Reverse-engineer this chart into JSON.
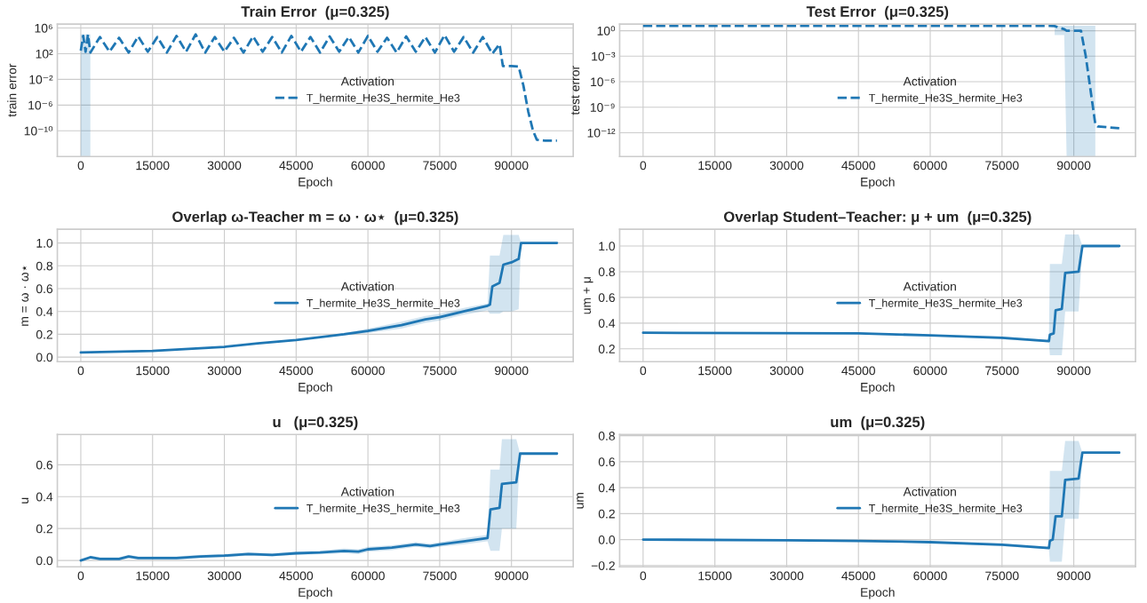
{
  "chart_data": [
    {
      "type": "line",
      "title": "Train Error  (μ=0.325)",
      "xlabel": "Epoch",
      "ylabel": "train error",
      "legend_title": "Activation",
      "log": "y",
      "grid": true,
      "legend": "right",
      "line_style": "dashed",
      "xlim": [
        -4900,
        102900
      ],
      "xticks": [
        0,
        15000,
        30000,
        45000,
        60000,
        75000,
        90000
      ],
      "ylim": [
        1e-14,
        4000000
      ],
      "yticks": [
        {
          "value": 1000000,
          "label": "10⁶"
        },
        {
          "value": 100,
          "label": "10²"
        },
        {
          "value": 0.01,
          "label": "10⁻²"
        },
        {
          "value": 1e-06,
          "label": "10⁻⁶"
        },
        {
          "value": 1e-10,
          "label": "10⁻¹⁰"
        }
      ],
      "series": [
        {
          "name": "T_hermite_He3S_hermite_He3",
          "color": "#1f77b4",
          "x": [
            0,
            500,
            1000,
            1500,
            2000,
            4000,
            6000,
            8000,
            10000,
            12000,
            14000,
            16000,
            18000,
            20000,
            22000,
            24000,
            26000,
            28000,
            30000,
            32000,
            34000,
            36000,
            38000,
            40000,
            42000,
            44000,
            46000,
            48000,
            50000,
            52000,
            54000,
            56000,
            58000,
            60000,
            62000,
            64000,
            66000,
            68000,
            70000,
            72000,
            74000,
            76000,
            78000,
            80000,
            82000,
            84000,
            86000,
            87500,
            88200,
            90000,
            91500,
            92500,
            93500,
            94500,
            95300,
            97000,
            99500
          ],
          "values": [
            300,
            60000,
            200,
            100000,
            150,
            40000,
            200,
            30000,
            150,
            50000,
            200,
            40000,
            150,
            60000,
            200,
            100000,
            150,
            40000,
            200,
            30000,
            150,
            50000,
            200,
            40000,
            150,
            60000,
            200,
            40000,
            150,
            50000,
            200,
            40000,
            150,
            60000,
            200,
            30000,
            150,
            50000,
            200,
            40000,
            150,
            80000,
            200,
            40000,
            150,
            40000,
            100,
            3000,
            1.2,
            1.2,
            1,
            0.001,
            1e-07,
            1e-10,
            4e-12,
            3e-12,
            3e-12
          ],
          "lower": [
            1e-14,
            1e-14,
            1e-14,
            1e-14,
            1e-14,
            null,
            null,
            null,
            null,
            null,
            null,
            null,
            null,
            null,
            null,
            null,
            null,
            null,
            null,
            null,
            null,
            null,
            null,
            null,
            null,
            null,
            null,
            null,
            null,
            null,
            null,
            null,
            null,
            null,
            null,
            null,
            null,
            null,
            null,
            null,
            null,
            null,
            null,
            null,
            null,
            null,
            null,
            null,
            null,
            null,
            null,
            null,
            null,
            null,
            null,
            null,
            null
          ],
          "upper": [
            100000,
            100000,
            100000,
            100000,
            100000,
            null,
            null,
            null,
            null,
            null,
            null,
            null,
            null,
            null,
            null,
            null,
            null,
            null,
            null,
            null,
            null,
            null,
            null,
            null,
            null,
            null,
            null,
            null,
            null,
            null,
            null,
            null,
            null,
            null,
            null,
            null,
            null,
            null,
            null,
            null,
            null,
            null,
            null,
            null,
            null,
            null,
            null,
            null,
            null,
            null,
            null,
            null,
            null,
            null,
            null,
            null,
            null
          ]
        }
      ]
    },
    {
      "type": "line",
      "title": "Test Error  (μ=0.325)",
      "xlabel": "Epoch",
      "ylabel": "test error",
      "legend_title": "Activation",
      "log": "y",
      "grid": true,
      "legend": "right",
      "line_style": "dashed",
      "xlim": [
        -4900,
        102900
      ],
      "xticks": [
        0,
        15000,
        30000,
        45000,
        60000,
        75000,
        90000
      ],
      "ylim": [
        1.6e-15,
        6
      ],
      "yticks": [
        {
          "value": 1,
          "label": "10⁰"
        },
        {
          "value": 0.001,
          "label": "10⁻³"
        },
        {
          "value": 1e-06,
          "label": "10⁻⁶"
        },
        {
          "value": 1e-09,
          "label": "10⁻⁹"
        },
        {
          "value": 1e-12,
          "label": "10⁻¹²"
        }
      ],
      "series": [
        {
          "name": "T_hermite_He3S_hermite_He3",
          "color": "#1f77b4",
          "x": [
            0,
            85000,
            86000,
            88000,
            88500,
            91500,
            92500,
            93500,
            94500,
            95000,
            99500
          ],
          "values": [
            3.8,
            3.8,
            3.5,
            1.5,
            1,
            1,
            0.001,
            1e-07,
            1e-11,
            5.5e-12,
            3.4e-12
          ],
          "lower": [
            null,
            null,
            0.3,
            0.3,
            1.6e-15,
            1.6e-15,
            1.6e-15,
            1.6e-15,
            1.6e-15,
            null,
            null
          ],
          "upper": [
            null,
            null,
            3.8,
            3.8,
            3.8,
            3.8,
            3.8,
            3.8,
            3.8,
            null,
            null
          ]
        }
      ]
    },
    {
      "type": "line",
      "title": "Overlap ω-Teacher m = ω · ω⋆  (μ=0.325)",
      "xlabel": "Epoch",
      "ylabel": "m = ω · ω⋆",
      "legend_title": "Activation",
      "grid": true,
      "legend": "right",
      "line_style": "solid",
      "xlim": [
        -4900,
        102900
      ],
      "xticks": [
        0,
        15000,
        30000,
        45000,
        60000,
        75000,
        90000
      ],
      "ylim": [
        -0.04,
        1.12
      ],
      "yticks": [
        {
          "value": 0,
          "label": "0.0"
        },
        0.2,
        0.4,
        0.6,
        0.8,
        {
          "value": 1,
          "label": "1.0"
        }
      ],
      "series": [
        {
          "name": "T_hermite_He3S_hermite_He3",
          "color": "#1f77b4",
          "x": [
            0,
            15000,
            30000,
            37000,
            45000,
            52000,
            55000,
            60000,
            67000,
            72000,
            75000,
            80000,
            85000,
            85500,
            86000,
            87500,
            88300,
            90000,
            91500,
            92000,
            99500
          ],
          "values": [
            0.04,
            0.055,
            0.09,
            0.12,
            0.15,
            0.185,
            0.2,
            0.23,
            0.28,
            0.33,
            0.35,
            0.4,
            0.45,
            0.46,
            0.62,
            0.65,
            0.81,
            0.83,
            0.86,
            1.0,
            1.0
          ],
          "lower": [
            0.04,
            0.055,
            0.09,
            0.12,
            0.15,
            0.18,
            0.19,
            0.21,
            0.25,
            0.3,
            0.32,
            0.37,
            0.41,
            0.38,
            0.38,
            0.38,
            0.4,
            0.4,
            0.42,
            1.0,
            1.0
          ],
          "upper": [
            0.04,
            0.055,
            0.09,
            0.12,
            0.15,
            0.19,
            0.21,
            0.25,
            0.31,
            0.36,
            0.38,
            0.43,
            0.47,
            0.89,
            0.89,
            0.89,
            1.07,
            1.07,
            1.07,
            1.0,
            1.0
          ]
        }
      ]
    },
    {
      "type": "line",
      "title": "Overlap Student–Teacher: μ + um  (μ=0.325)",
      "xlabel": "Epoch",
      "ylabel": "um + μ",
      "legend_title": "Activation",
      "grid": true,
      "legend": "right",
      "line_style": "solid",
      "xlim": [
        -4900,
        102900
      ],
      "xticks": [
        0,
        15000,
        30000,
        45000,
        60000,
        75000,
        90000
      ],
      "ylim": [
        0.1,
        1.13
      ],
      "yticks": [
        0.2,
        0.4,
        0.6,
        0.8,
        {
          "value": 1,
          "label": "1.0"
        }
      ],
      "series": [
        {
          "name": "T_hermite_He3S_hermite_He3",
          "color": "#1f77b4",
          "x": [
            0,
            45000,
            60000,
            75000,
            84800,
            85000,
            85800,
            86200,
            87500,
            88200,
            91000,
            91800,
            99500
          ],
          "values": [
            0.325,
            0.32,
            0.305,
            0.285,
            0.26,
            0.31,
            0.32,
            0.5,
            0.51,
            0.79,
            0.8,
            1.0,
            1.0
          ],
          "lower": [
            0.325,
            0.32,
            0.3,
            0.275,
            0.25,
            0.15,
            0.15,
            0.15,
            0.15,
            0.49,
            0.49,
            1.0,
            1.0
          ],
          "upper": [
            0.325,
            0.32,
            0.31,
            0.295,
            0.27,
            0.86,
            0.86,
            0.86,
            0.86,
            1.09,
            1.09,
            1.0,
            1.0
          ]
        }
      ]
    },
    {
      "type": "line",
      "title": "u   (μ=0.325)",
      "xlabel": "Epoch",
      "ylabel": "u",
      "legend_title": "Activation",
      "grid": true,
      "legend": "right",
      "line_style": "solid",
      "xlim": [
        -4900,
        102900
      ],
      "xticks": [
        0,
        15000,
        30000,
        45000,
        60000,
        75000,
        90000
      ],
      "ylim": [
        -0.04,
        0.79
      ],
      "yticks": [
        {
          "value": 0,
          "label": "0.0"
        },
        0.2,
        0.4,
        0.6
      ],
      "series": [
        {
          "name": "T_hermite_He3S_hermite_He3",
          "color": "#1f77b4",
          "x": [
            0,
            2000,
            4000,
            8000,
            10000,
            12000,
            20000,
            25000,
            30000,
            35000,
            40000,
            45000,
            50000,
            55000,
            58000,
            60000,
            65000,
            70000,
            73000,
            75000,
            80000,
            85000,
            85600,
            87500,
            88000,
            91000,
            91800,
            99500
          ],
          "values": [
            0.0,
            0.02,
            0.01,
            0.01,
            0.025,
            0.015,
            0.015,
            0.025,
            0.03,
            0.04,
            0.035,
            0.045,
            0.05,
            0.06,
            0.055,
            0.07,
            0.08,
            0.1,
            0.09,
            0.1,
            0.12,
            0.14,
            0.32,
            0.33,
            0.48,
            0.49,
            0.67,
            0.67
          ],
          "lower": [
            0.0,
            0.01,
            0.0,
            0.0,
            0.015,
            0.005,
            0.005,
            0.015,
            0.02,
            0.03,
            0.025,
            0.035,
            0.04,
            0.045,
            0.04,
            0.055,
            0.065,
            0.085,
            0.075,
            0.085,
            0.1,
            0.12,
            0.06,
            0.06,
            0.2,
            0.2,
            0.67,
            0.67
          ],
          "upper": [
            0.0,
            0.03,
            0.02,
            0.02,
            0.035,
            0.025,
            0.025,
            0.035,
            0.04,
            0.05,
            0.045,
            0.055,
            0.06,
            0.075,
            0.07,
            0.085,
            0.095,
            0.115,
            0.105,
            0.115,
            0.14,
            0.16,
            0.57,
            0.57,
            0.76,
            0.76,
            0.67,
            0.67
          ]
        }
      ]
    },
    {
      "type": "line",
      "title": "um  (μ=0.325)",
      "xlabel": "Epoch",
      "ylabel": "um",
      "legend_title": "Activation",
      "grid": true,
      "legend": "right",
      "line_style": "solid",
      "xlim": [
        -4900,
        102900
      ],
      "xticks": [
        0,
        15000,
        30000,
        45000,
        60000,
        75000,
        90000
      ],
      "ylim": [
        -0.21,
        0.81
      ],
      "yticks": [
        {
          "value": -0.2,
          "label": "−0.2"
        },
        {
          "value": 0,
          "label": "0.0"
        },
        0.2,
        0.4,
        0.6,
        0.8
      ],
      "series": [
        {
          "name": "T_hermite_He3S_hermite_He3",
          "color": "#1f77b4",
          "x": [
            0,
            30000,
            45000,
            60000,
            75000,
            84800,
            85000,
            85600,
            86200,
            87500,
            88200,
            91000,
            91800,
            99500
          ],
          "values": [
            0.0,
            -0.005,
            -0.01,
            -0.02,
            -0.04,
            -0.065,
            -0.01,
            0.0,
            0.18,
            0.18,
            0.46,
            0.47,
            0.67,
            0.67
          ],
          "lower": [
            0.0,
            -0.005,
            -0.01,
            -0.025,
            -0.05,
            -0.075,
            -0.17,
            -0.17,
            -0.17,
            -0.17,
            0.16,
            0.16,
            0.67,
            0.67
          ],
          "upper": [
            0.0,
            -0.005,
            -0.01,
            -0.015,
            -0.03,
            -0.055,
            0.53,
            0.53,
            0.53,
            0.53,
            0.76,
            0.76,
            0.67,
            0.67
          ]
        }
      ]
    }
  ]
}
